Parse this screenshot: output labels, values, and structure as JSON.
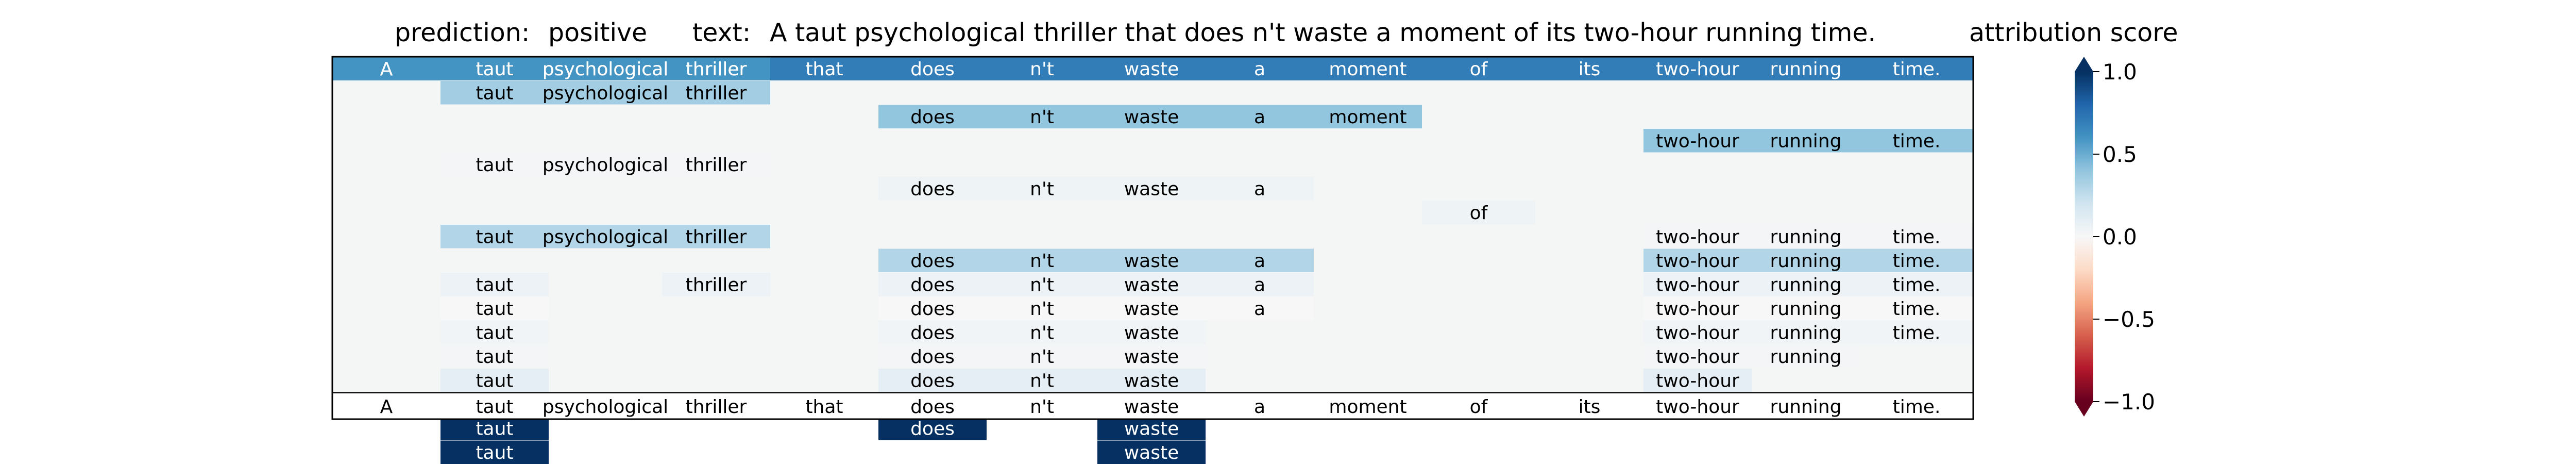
{
  "header": {
    "prediction_label": "prediction:",
    "prediction_value": "positive",
    "text_label": "text:",
    "text_value": "A taut psychological thriller that does n't waste a moment of its two-hour running time."
  },
  "chart_data": {
    "type": "heatmap",
    "title": "",
    "xlabel": "",
    "ylabel": "",
    "tokens": [
      "A",
      "taut",
      "psychological",
      "thriller",
      "that",
      "does",
      "n't",
      "waste",
      "a",
      "moment",
      "of",
      "its",
      "two-hour",
      "running",
      "time."
    ],
    "spans": [
      {
        "start": 0,
        "end": 15,
        "score": 0.7
      },
      {
        "start": 0,
        "end": 5,
        "score": 0.7
      },
      {
        "start": 0,
        "end": 4,
        "score": 0.6
      },
      {
        "start": 1,
        "end": 4,
        "score": 0.35
      },
      {
        "start": 5,
        "end": 10,
        "score": 0.4
      },
      {
        "start": 12,
        "end": 15,
        "score": 0.4
      },
      {
        "start": 1,
        "end": 4,
        "score": 0.02
      },
      {
        "start": 5,
        "end": 9,
        "score": 0.05
      },
      {
        "start": 10,
        "end": 11,
        "score": 0.05
      },
      {
        "start": 12,
        "end": 15,
        "score": 0.02
      },
      {
        "start": 1,
        "end": 4,
        "score": 0.3
      },
      {
        "start": 5,
        "end": 9,
        "score": 0.3
      },
      {
        "start": 12,
        "end": 15,
        "score": 0.3
      },
      {
        "start": 1,
        "end": 2,
        "score": 0.06
      },
      {
        "start": 3,
        "end": 4,
        "score": 0.06
      },
      {
        "start": 5,
        "end": 9,
        "score": 0.06
      },
      {
        "start": 12,
        "end": 15,
        "score": 0.06
      },
      {
        "start": 1,
        "end": 2,
        "score": 0.0
      },
      {
        "start": 5,
        "end": 9,
        "score": 0.0
      },
      {
        "start": 12,
        "end": 15,
        "score": 0.0
      },
      {
        "start": 1,
        "end": 2,
        "score": 0.03
      },
      {
        "start": 5,
        "end": 8,
        "score": 0.03
      },
      {
        "start": 12,
        "end": 15,
        "score": 0.03
      },
      {
        "start": 1,
        "end": 2,
        "score": 0.02
      },
      {
        "start": 5,
        "end": 8,
        "score": 0.02
      },
      {
        "start": 12,
        "end": 14,
        "score": 0.02
      },
      {
        "start": 1,
        "end": 2,
        "score": 0.1
      },
      {
        "start": 5,
        "end": 8,
        "score": 0.1
      },
      {
        "start": 12,
        "end": 13,
        "score": 0.1
      },
      {
        "start": 1,
        "end": 2,
        "score": 1.0
      },
      {
        "start": 5,
        "end": 8,
        "score": 1.0
      },
      {
        "start": 1,
        "end": 2,
        "score": 1.0
      },
      {
        "start": 5,
        "end": 6,
        "score": 1.0
      },
      {
        "start": 7,
        "end": 8,
        "score": 1.0
      },
      {
        "start": 1,
        "end": 2,
        "score": 1.0
      },
      {
        "start": 7,
        "end": 8,
        "score": 1.0
      }
    ],
    "tree_rows": [
      [
        0,
        1,
        2
      ],
      [
        3
      ],
      [
        4
      ],
      [
        5
      ],
      [
        6
      ],
      [
        7
      ],
      [
        8
      ],
      [
        9,
        10
      ],
      [
        11,
        12
      ],
      [
        13,
        14,
        15,
        16
      ],
      [
        17,
        18,
        19
      ],
      [
        20,
        21,
        22
      ],
      [
        23,
        24,
        25
      ],
      [
        26,
        27,
        28
      ],
      [
        29,
        30
      ],
      [
        31,
        32,
        33
      ],
      [
        34,
        35
      ]
    ],
    "colorbar": {
      "label": "attribution score",
      "range": [
        -1.0,
        1.0
      ],
      "ticks": [
        1.0,
        0.5,
        0.0,
        -0.5,
        -1.0
      ],
      "tick_labels": [
        "1.0",
        "0.5",
        "0.0",
        "−0.5",
        "−1.0"
      ],
      "colormap": "RdBu",
      "extend": "both"
    },
    "colors": {
      "background": "#f4f6f6",
      "frame": "#000000",
      "strong_positive": "#053061",
      "strong_negative": "#67001f"
    },
    "bottom_row_tokens": [
      "A",
      "taut",
      "psychological",
      "thriller",
      "that",
      "does",
      "n't",
      "waste",
      "a",
      "moment",
      "of",
      "its",
      "two-hour",
      "running",
      "time."
    ]
  }
}
